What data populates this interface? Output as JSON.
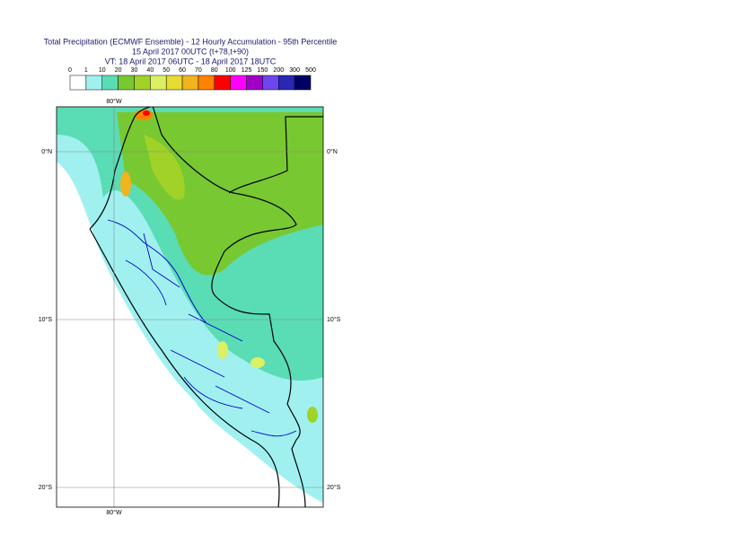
{
  "title": {
    "line1": "Total Precipitation (ECMWF Ensemble) - 12 Hourly Accumulation - 95th Percentile",
    "line2": "15 April 2017 00UTC (t+78,t+90)",
    "line3": "VT: 18 April 2017 06UTC - 18 April 2017 18UTC"
  },
  "legend": {
    "ticks": [
      0,
      1,
      10,
      20,
      30,
      40,
      50,
      60,
      70,
      80,
      100,
      125,
      150,
      200,
      300,
      500
    ],
    "colors": [
      "#ffffff",
      "#a0f0f0",
      "#5adcb4",
      "#78c832",
      "#a0d228",
      "#dcf064",
      "#e6dc32",
      "#f0b41e",
      "#ff8200",
      "#ff0000",
      "#ff00ff",
      "#a000c8",
      "#6e46f0",
      "#2828b4",
      "#000064"
    ]
  },
  "map": {
    "lon_labels": [
      "80°W"
    ],
    "lat_labels": [
      "0°N",
      "10°S",
      "20°S"
    ]
  }
}
